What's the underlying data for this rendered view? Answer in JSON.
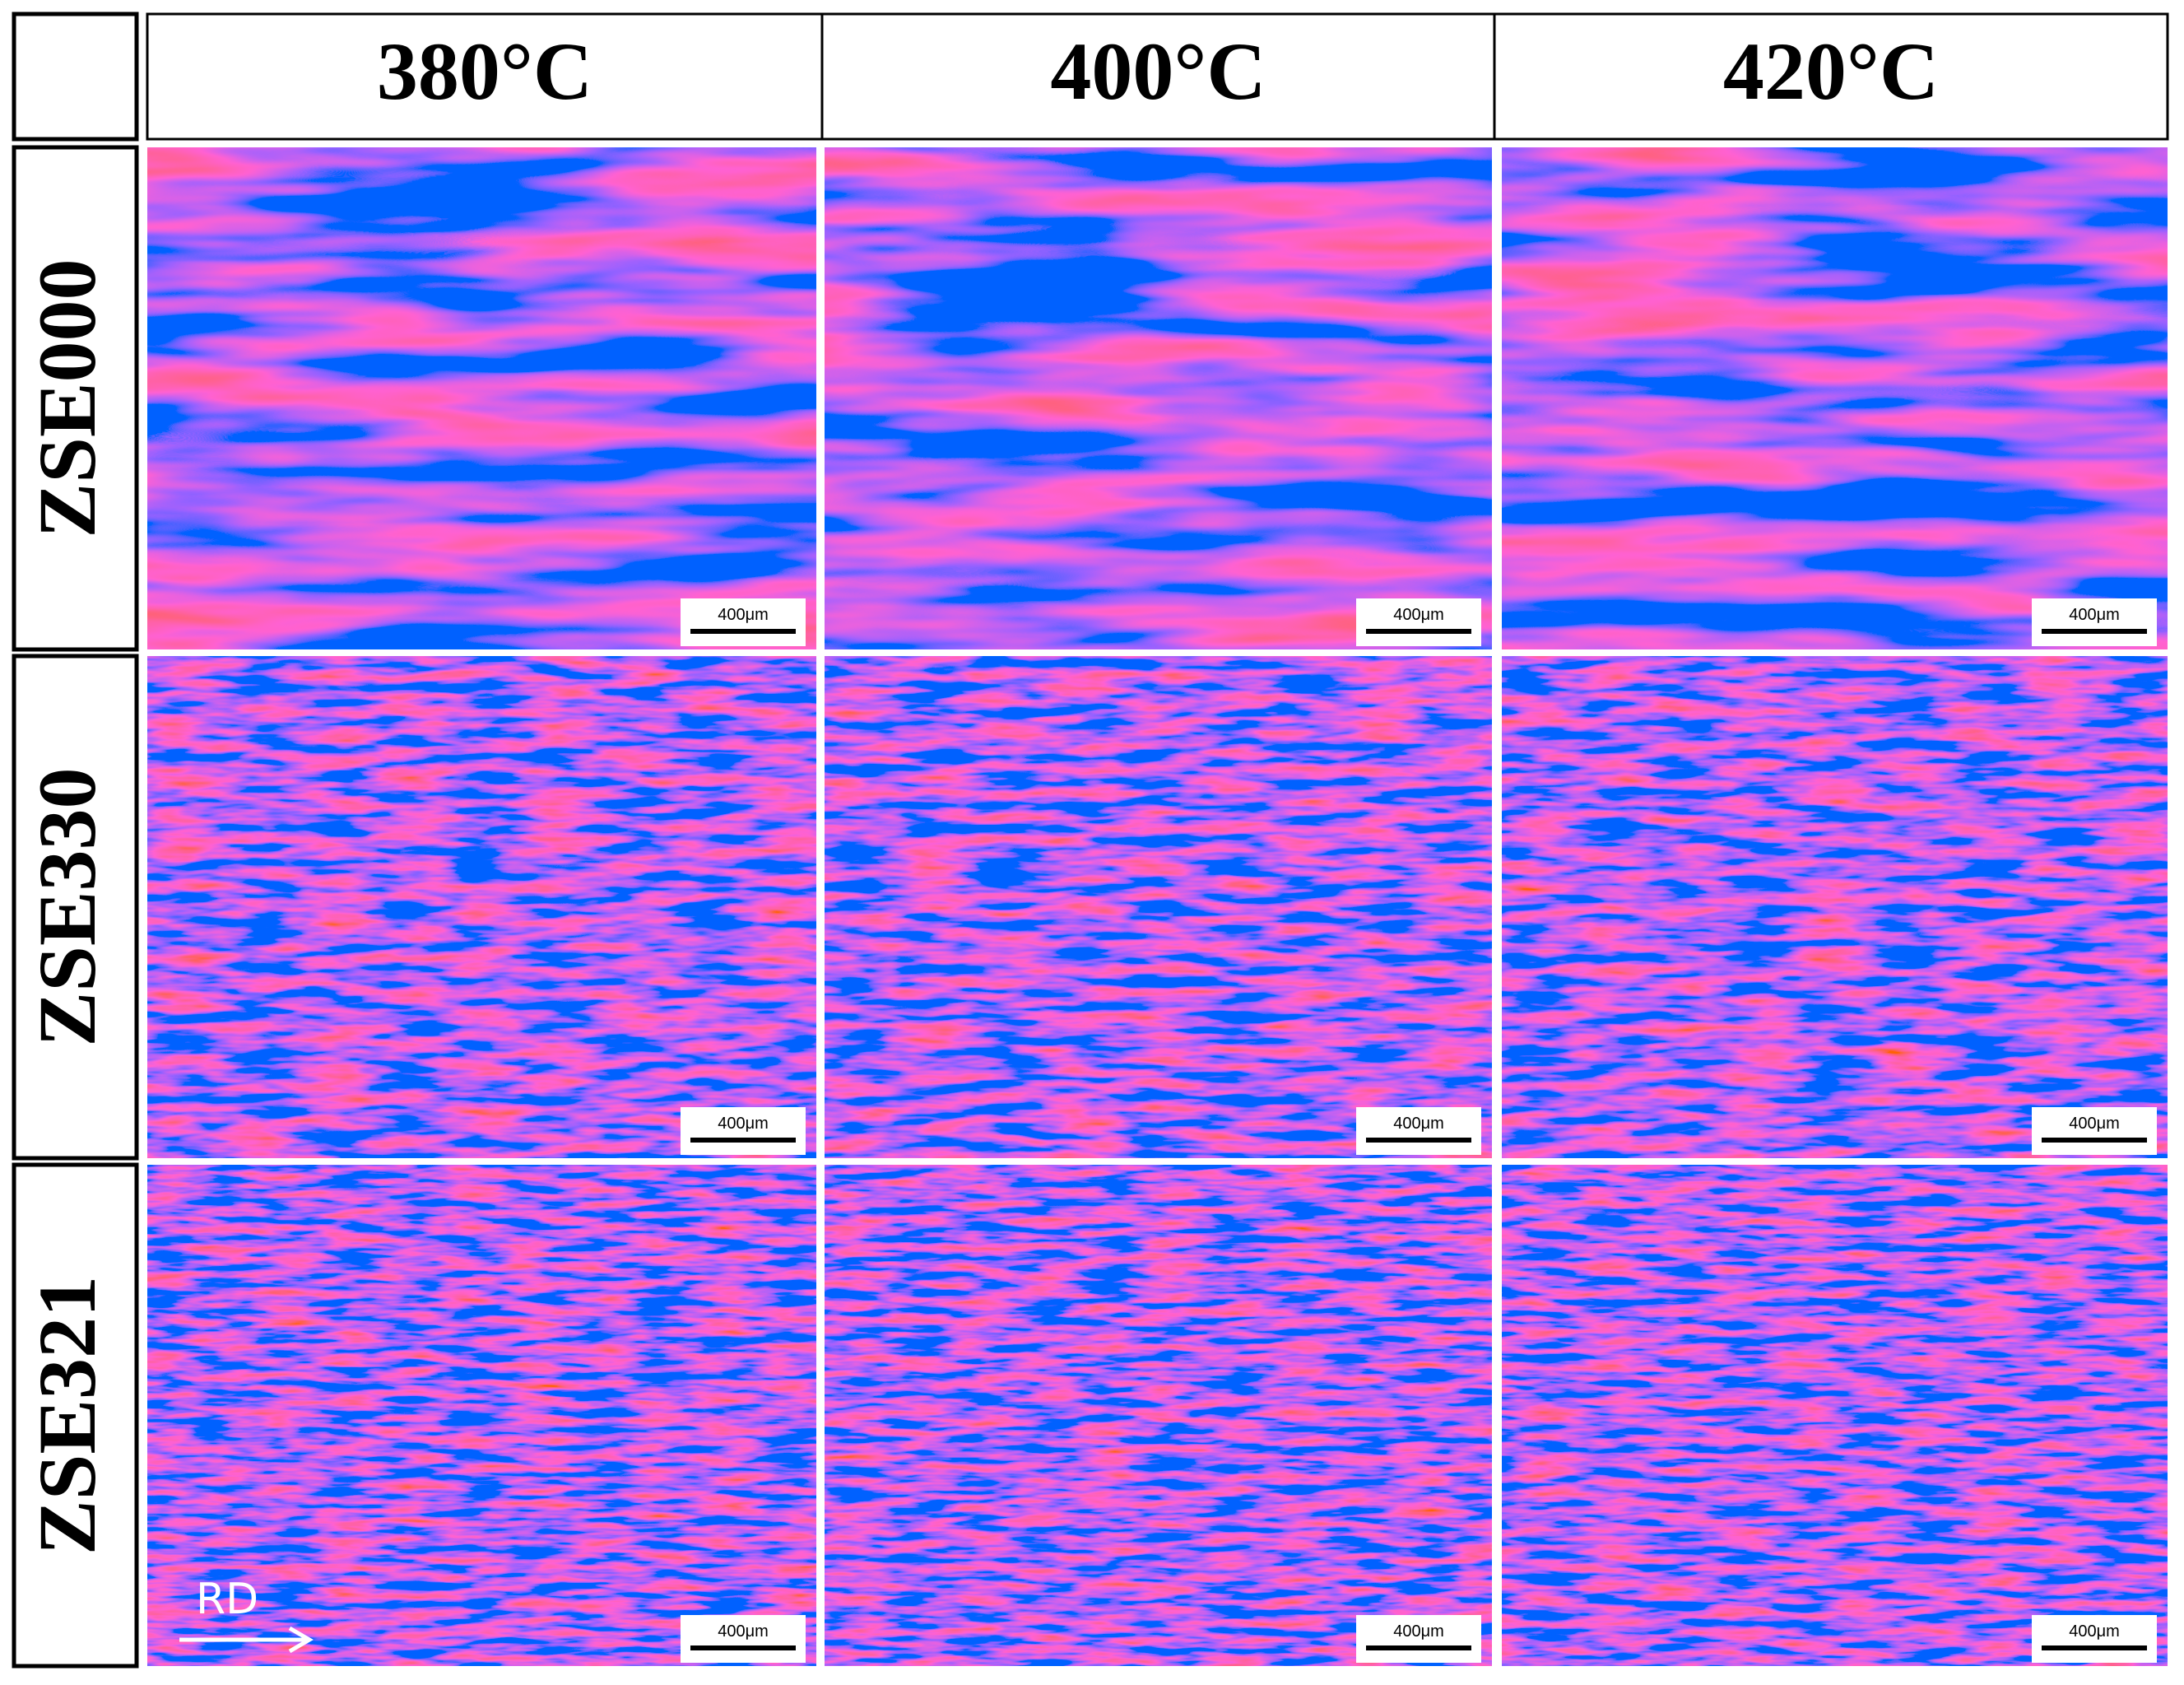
{
  "header": {
    "columns": [
      "380°C",
      "400°C",
      "420°C"
    ]
  },
  "rows": [
    {
      "label": "ZSE000",
      "panels": [
        {
          "scale_bar": "400μm"
        },
        {
          "scale_bar": "400μm"
        },
        {
          "scale_bar": "400μm"
        }
      ]
    },
    {
      "label": "ZSE330",
      "panels": [
        {
          "scale_bar": "400μm"
        },
        {
          "scale_bar": "400μm"
        },
        {
          "scale_bar": "400μm"
        }
      ]
    },
    {
      "label": "ZSE321",
      "panels": [
        {
          "scale_bar": "400μm"
        },
        {
          "scale_bar": "400μm"
        },
        {
          "scale_bar": "400μm"
        }
      ]
    }
  ],
  "direction_label": "RD"
}
